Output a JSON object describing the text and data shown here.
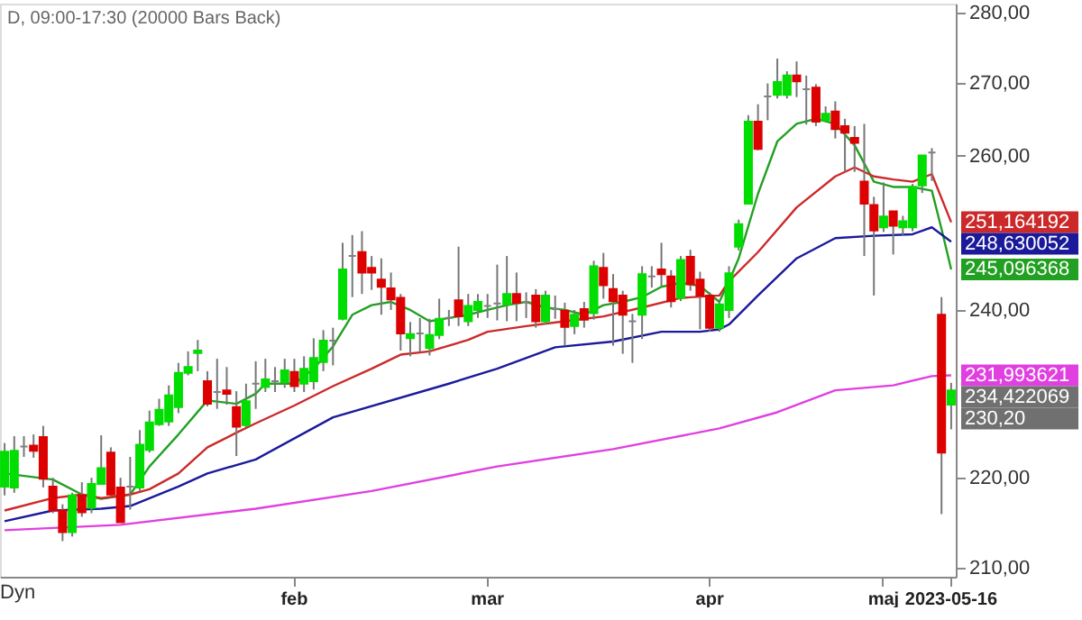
{
  "chart_data": {
    "type": "candlestick",
    "title": "D, 09:00-17:30 (20000 Bars Back)",
    "categories": [
      null,
      null,
      null,
      null,
      null,
      null,
      null,
      null,
      null,
      null,
      null,
      null,
      null,
      null,
      null,
      null,
      null,
      null,
      null,
      null,
      null,
      null,
      null,
      null,
      null,
      null,
      null,
      null,
      null,
      null,
      "feb",
      null,
      null,
      null,
      null,
      null,
      null,
      null,
      null,
      null,
      null,
      null,
      null,
      null,
      null,
      null,
      null,
      null,
      null,
      null,
      "mar",
      null,
      null,
      null,
      null,
      null,
      null,
      null,
      null,
      null,
      null,
      null,
      null,
      null,
      null,
      null,
      null,
      null,
      null,
      null,
      null,
      null,
      null,
      "apr",
      null,
      null,
      null,
      null,
      null,
      null,
      null,
      null,
      null,
      null,
      null,
      null,
      null,
      null,
      null,
      null,
      null,
      "maj",
      null,
      null,
      null,
      null,
      null,
      null,
      "2023-05-16"
    ],
    "ohlc": [
      [
        219.0,
        224.0,
        218.0,
        223.0
      ],
      [
        218.9,
        224.8,
        218.3,
        223.1
      ],
      [
        223.6,
        224.8,
        222.4,
        223.6
      ],
      [
        223.7,
        225.0,
        222.3,
        223.1
      ],
      [
        224.7,
        226.0,
        218.9,
        219.9
      ],
      [
        219.0,
        220.0,
        216.0,
        216.3
      ],
      [
        216.3,
        217.0,
        212.9,
        213.9
      ],
      [
        213.9,
        218.3,
        213.4,
        218.0
      ],
      [
        218.0,
        219.5,
        215.6,
        216.1
      ],
      [
        216.6,
        220.0,
        216.0,
        219.3
      ],
      [
        219.3,
        224.9,
        219.3,
        221.1
      ],
      [
        222.9,
        223.5,
        218.0,
        218.1
      ],
      [
        218.9,
        220.0,
        215.0,
        215.0
      ],
      [
        219.0,
        222.4,
        216.4,
        219.0
      ],
      [
        218.9,
        225.5,
        218.5,
        223.8
      ],
      [
        223.2,
        227.8,
        222.9,
        226.4
      ],
      [
        226.2,
        229.2,
        226.0,
        227.9
      ],
      [
        226.5,
        230.8,
        226.0,
        229.6
      ],
      [
        228.2,
        233.5,
        227.5,
        232.3
      ],
      [
        232.3,
        234.9,
        232.0,
        233.0
      ],
      [
        234.7,
        236.3,
        232.5,
        235.0
      ],
      [
        231.3,
        232.5,
        228.3,
        228.6
      ],
      [
        230.0,
        234.0,
        228.0,
        230.0
      ],
      [
        230.2,
        233.0,
        228.5,
        229.8
      ],
      [
        228.2,
        230.1,
        222.5,
        225.9
      ],
      [
        226.1,
        231.0,
        225.8,
        228.9
      ],
      [
        231.0,
        233.7,
        228.0,
        231.0
      ],
      [
        230.6,
        234.0,
        230.0,
        231.5
      ],
      [
        231.3,
        233.0,
        230.0,
        231.3
      ],
      [
        231.2,
        234.0,
        230.5,
        232.6
      ],
      [
        232.4,
        234.0,
        230.0,
        230.7
      ],
      [
        231.0,
        234.3,
        230.0,
        232.8
      ],
      [
        231.3,
        236.5,
        230.3,
        234.1
      ],
      [
        233.6,
        237.5,
        232.5,
        236.2
      ],
      [
        236.2,
        237.8,
        233.2,
        236.2
      ],
      [
        238.9,
        248.5,
        238.7,
        245.1
      ],
      [
        246.8,
        249.5,
        241.6,
        246.8
      ],
      [
        247.3,
        250.0,
        242.0,
        244.7
      ],
      [
        245.3,
        246.8,
        242.5,
        244.7
      ],
      [
        243.8,
        246.5,
        239.4,
        242.9
      ],
      [
        242.7,
        244.7,
        240.0,
        241.3
      ],
      [
        241.5,
        242.0,
        235.0,
        237.1
      ],
      [
        236.5,
        238.5,
        234.3,
        237.0
      ],
      [
        237.1,
        239.0,
        234.8,
        237.1
      ],
      [
        235.3,
        238.9,
        234.4,
        236.9
      ],
      [
        236.9,
        241.4,
        236.4,
        238.9
      ],
      [
        239.0,
        240.0,
        238.0,
        239.0
      ],
      [
        241.2,
        248.0,
        238.0,
        239.2
      ],
      [
        238.6,
        242.0,
        238.0,
        240.5
      ],
      [
        240.0,
        242.0,
        239.0,
        241.0
      ],
      [
        240.5,
        242.0,
        239.0,
        240.5
      ],
      [
        240.8,
        245.7,
        238.7,
        240.8
      ],
      [
        240.7,
        246.8,
        238.6,
        242.0
      ],
      [
        242.0,
        244.7,
        238.6,
        240.9
      ],
      [
        241.0,
        242.2,
        239.0,
        241.0
      ],
      [
        241.8,
        242.6,
        237.8,
        238.6
      ],
      [
        238.6,
        242.4,
        238.2,
        241.8
      ],
      [
        240.1,
        241.8,
        238.9,
        240.1
      ],
      [
        239.9,
        240.9,
        235.6,
        237.9
      ],
      [
        238.0,
        240.0,
        237.0,
        239.4
      ],
      [
        240.1,
        241.0,
        237.8,
        238.8
      ],
      [
        239.6,
        246.2,
        238.8,
        245.5
      ],
      [
        245.3,
        247.2,
        241.4,
        243.1
      ],
      [
        242.6,
        244.5,
        235.6,
        241.1
      ],
      [
        241.8,
        242.4,
        234.6,
        239.4
      ],
      [
        238.6,
        239.5,
        233.5,
        238.6
      ],
      [
        239.4,
        245.5,
        236.4,
        244.5
      ],
      [
        244.2,
        245.5,
        242.8,
        244.2
      ],
      [
        245.1,
        248.5,
        243.0,
        244.5
      ],
      [
        244.2,
        245.0,
        240.3,
        241.1
      ],
      [
        241.5,
        246.8,
        241.1,
        246.3
      ],
      [
        246.7,
        247.6,
        242.4,
        243.2
      ],
      [
        243.8,
        244.8,
        237.6,
        241.8
      ],
      [
        241.8,
        242.2,
        237.3,
        237.8
      ],
      [
        237.8,
        241.2,
        237.3,
        240.7
      ],
      [
        240.0,
        245.5,
        239.0,
        244.6
      ],
      [
        248.0,
        251.5,
        247.5,
        250.9
      ],
      [
        253.6,
        265.5,
        253.6,
        264.6
      ],
      [
        264.6,
        267.0,
        260.7,
        260.9
      ],
      [
        268.1,
        269.9,
        264.8,
        268.1
      ],
      [
        268.3,
        273.4,
        267.8,
        270.1
      ],
      [
        268.3,
        271.6,
        267.8,
        271.0
      ],
      [
        271.0,
        273.0,
        268.0,
        270.2
      ],
      [
        269.1,
        271.0,
        264.2,
        269.1
      ],
      [
        269.3,
        269.8,
        264.0,
        264.6
      ],
      [
        264.8,
        266.7,
        264.6,
        265.7
      ],
      [
        266.0,
        267.4,
        262.3,
        263.6
      ],
      [
        264.0,
        265.0,
        257.8,
        263.1
      ],
      [
        262.4,
        264.0,
        257.8,
        261.7
      ],
      [
        256.5,
        264.3,
        246.8,
        253.6
      ],
      [
        253.4,
        254.5,
        241.8,
        250.1
      ],
      [
        250.5,
        256.4,
        249.9,
        251.9
      ],
      [
        252.6,
        252.6,
        247.0,
        250.7
      ],
      [
        250.5,
        252.0,
        249.5,
        251.3
      ],
      [
        250.5,
        256.2,
        250.0,
        255.8
      ],
      [
        256.0,
        260.0,
        255.0,
        260.0
      ],
      [
        260.4,
        261.0,
        256.6,
        260.4
      ],
      [
        239.4,
        241.6,
        215.9,
        222.9
      ],
      [
        228.5,
        231.1,
        225.6,
        230.2
      ]
    ],
    "colors": [
      "#00dd00",
      "#00dd00",
      "#808080",
      "#dd0000",
      "#dd0000",
      "#dd0000",
      "#dd0000",
      "#00dd00",
      "#dd0000",
      "#00dd00",
      "#00dd00",
      "#dd0000",
      "#dd0000",
      "#808080",
      "#00dd00",
      "#00dd00",
      "#00dd00",
      "#00dd00",
      "#00dd00",
      "#00dd00",
      "#00dd00",
      "#dd0000",
      "#808080",
      "#dd0000",
      "#dd0000",
      "#00dd00",
      "#808080",
      "#00dd00",
      "#808080",
      "#00dd00",
      "#dd0000",
      "#00dd00",
      "#00dd00",
      "#00dd00",
      "#808080",
      "#00dd00",
      "#808080",
      "#dd0000",
      "#dd0000",
      "#dd0000",
      "#dd0000",
      "#dd0000",
      "#00dd00",
      "#808080",
      "#00dd00",
      "#00dd00",
      "#808080",
      "#dd0000",
      "#00dd00",
      "#00dd00",
      "#808080",
      "#808080",
      "#00dd00",
      "#dd0000",
      "#808080",
      "#dd0000",
      "#00dd00",
      "#808080",
      "#dd0000",
      "#00dd00",
      "#dd0000",
      "#00dd00",
      "#dd0000",
      "#dd0000",
      "#dd0000",
      "#808080",
      "#00dd00",
      "#808080",
      "#dd0000",
      "#dd0000",
      "#00dd00",
      "#dd0000",
      "#dd0000",
      "#dd0000",
      "#00dd00",
      "#00dd00",
      "#00dd00",
      "#00dd00",
      "#dd0000",
      "#808080",
      "#00dd00",
      "#00dd00",
      "#dd0000",
      "#808080",
      "#dd0000",
      "#00dd00",
      "#dd0000",
      "#dd0000",
      "#dd0000",
      "#dd0000",
      "#dd0000",
      "#00dd00",
      "#dd0000",
      "#00dd00",
      "#00dd00",
      "#00dd00",
      "#808080",
      "#dd0000",
      "#00dd00"
    ],
    "series": [
      {
        "type": "line",
        "color": "#22a022",
        "values": [
          220.5,
          null,
          null,
          null,
          null,
          219.8,
          null,
          null,
          218.1,
          null,
          217.6,
          null,
          null,
          218.1,
          null,
          221.3,
          null,
          null,
          225.0,
          null,
          null,
          229.0,
          null,
          null,
          228.6,
          null,
          229.8,
          231.0,
          null,
          null,
          231.0,
          null,
          232.8,
          null,
          235.5,
          null,
          239.4,
          null,
          240.6,
          null,
          241.0,
          null,
          240.0,
          null,
          238.6,
          null,
          239.0,
          null,
          239.4,
          null,
          240.0,
          null,
          240.6,
          null,
          241.0,
          null,
          240.3,
          null,
          240.0,
          null,
          239.4,
          null,
          240.6,
          null,
          241.0,
          null,
          241.6,
          null,
          242.9,
          null,
          243.4,
          null,
          243.0,
          null,
          241.0,
          243.6,
          246.5,
          null,
          254.9,
          null,
          261.9,
          null,
          264.3,
          null,
          265.0,
          null,
          264.3,
          null,
          261.4,
          null,
          256.5,
          null,
          255.8,
          null,
          255.8,
          null,
          255.3,
          250.3,
          245.096368
        ],
        "value_labels": [
          null,
          null,
          null,
          null,
          null,
          null,
          null,
          null,
          null,
          null,
          null,
          null,
          null,
          null,
          null,
          null,
          null,
          null,
          null,
          null,
          null,
          null,
          null,
          null,
          null,
          null,
          null,
          null,
          null,
          null,
          null,
          null,
          null,
          null,
          null,
          null,
          null,
          null,
          null,
          null,
          null,
          null,
          null,
          null,
          null,
          null,
          null,
          null,
          null,
          null,
          null,
          null,
          null,
          null,
          null,
          null,
          null,
          null,
          null,
          null,
          null,
          null,
          null,
          null,
          null,
          null,
          null,
          null,
          null,
          null,
          null,
          null,
          null,
          null,
          null,
          null,
          null,
          null,
          null,
          null,
          null,
          null,
          null,
          null,
          null,
          null,
          null,
          null,
          null,
          null,
          null,
          null,
          null,
          null,
          null,
          null,
          null,
          null,
          "245,096368"
        ]
      },
      {
        "type": "line",
        "color": "#cc2a2a",
        "values": [
          216.3,
          null,
          null,
          null,
          null,
          217.7,
          null,
          null,
          218.1,
          null,
          217.7,
          null,
          null,
          218.1,
          null,
          218.7,
          null,
          null,
          220.5,
          null,
          null,
          223.5,
          null,
          null,
          225.2,
          null,
          226.3,
          null,
          null,
          null,
          228.4,
          null,
          null,
          null,
          230.7,
          null,
          null,
          null,
          232.8,
          null,
          null,
          234.5,
          null,
          null,
          234.9,
          null,
          null,
          null,
          236.3,
          null,
          237.3,
          null,
          null,
          null,
          238.0,
          null,
          null,
          null,
          238.6,
          null,
          null,
          null,
          239.2,
          null,
          null,
          null,
          240.3,
          null,
          null,
          null,
          241.5,
          null,
          null,
          null,
          241.8,
          243.6,
          null,
          null,
          247.3,
          null,
          null,
          null,
          253.1,
          null,
          null,
          null,
          257.2,
          null,
          258.4,
          null,
          257.2,
          null,
          256.8,
          null,
          256.5,
          null,
          257.5,
          null,
          251.164192
        ],
        "value_labels": [
          null,
          null,
          null,
          null,
          null,
          null,
          null,
          null,
          null,
          null,
          null,
          null,
          null,
          null,
          null,
          null,
          null,
          null,
          null,
          null,
          null,
          null,
          null,
          null,
          null,
          null,
          null,
          null,
          null,
          null,
          null,
          null,
          null,
          null,
          null,
          null,
          null,
          null,
          null,
          null,
          null,
          null,
          null,
          null,
          null,
          null,
          null,
          null,
          null,
          null,
          null,
          null,
          null,
          null,
          null,
          null,
          null,
          null,
          null,
          null,
          null,
          null,
          null,
          null,
          null,
          null,
          null,
          null,
          null,
          null,
          null,
          null,
          null,
          null,
          null,
          null,
          null,
          null,
          null,
          null,
          null,
          null,
          null,
          null,
          null,
          null,
          null,
          null,
          null,
          null,
          null,
          null,
          null,
          null,
          null,
          null,
          null,
          null,
          "251,164192"
        ]
      },
      {
        "type": "line",
        "color": "#1a1a9a",
        "values": [
          215.1,
          null,
          null,
          null,
          null,
          216.3,
          null,
          null,
          null,
          null,
          216.5,
          null,
          null,
          216.8,
          null,
          null,
          null,
          null,
          219.0,
          null,
          null,
          220.5,
          null,
          null,
          null,
          null,
          222.1,
          null,
          null,
          null,
          null,
          null,
          null,
          null,
          227.0,
          null,
          null,
          null,
          null,
          null,
          null,
          null,
          null,
          null,
          null,
          null,
          231.0,
          null,
          null,
          null,
          null,
          232.8,
          null,
          null,
          null,
          null,
          null,
          235.4,
          null,
          null,
          null,
          null,
          null,
          236.1,
          null,
          null,
          null,
          null,
          237.3,
          null,
          null,
          null,
          237.3,
          null,
          237.6,
          238.2,
          null,
          null,
          241.8,
          null,
          null,
          null,
          246.5,
          null,
          null,
          null,
          249.1,
          null,
          null,
          null,
          249.4,
          null,
          null,
          null,
          249.6,
          null,
          250.5,
          null,
          248.630052
        ],
        "value_labels": [
          null,
          null,
          null,
          null,
          null,
          null,
          null,
          null,
          null,
          null,
          null,
          null,
          null,
          null,
          null,
          null,
          null,
          null,
          null,
          null,
          null,
          null,
          null,
          null,
          null,
          null,
          null,
          null,
          null,
          null,
          null,
          null,
          null,
          null,
          null,
          null,
          null,
          null,
          null,
          null,
          null,
          null,
          null,
          null,
          null,
          null,
          null,
          null,
          null,
          null,
          null,
          null,
          null,
          null,
          null,
          null,
          null,
          null,
          null,
          null,
          null,
          null,
          null,
          null,
          null,
          null,
          null,
          null,
          null,
          null,
          null,
          null,
          null,
          null,
          null,
          null,
          null,
          null,
          null,
          null,
          null,
          null,
          null,
          null,
          null,
          null,
          null,
          null,
          null,
          null,
          null,
          null,
          null,
          null,
          null,
          null,
          null,
          null,
          "248,630052"
        ]
      },
      {
        "type": "line",
        "color": "#e040e0",
        "values": [
          214.1,
          null,
          null,
          null,
          null,
          null,
          null,
          null,
          null,
          null,
          null,
          null,
          214.7,
          null,
          null,
          null,
          null,
          null,
          null,
          null,
          null,
          null,
          null,
          null,
          null,
          null,
          216.5,
          null,
          null,
          null,
          null,
          null,
          null,
          null,
          null,
          null,
          null,
          null,
          218.5,
          null,
          null,
          null,
          null,
          null,
          null,
          null,
          null,
          null,
          null,
          null,
          null,
          221.3,
          null,
          null,
          null,
          null,
          null,
          null,
          null,
          null,
          null,
          null,
          null,
          223.3,
          null,
          null,
          null,
          null,
          null,
          null,
          null,
          null,
          null,
          null,
          225.7,
          null,
          null,
          null,
          null,
          null,
          227.6,
          null,
          null,
          null,
          null,
          null,
          230.2,
          null,
          null,
          null,
          null,
          null,
          230.8,
          null,
          null,
          null,
          231.9,
          null,
          231.993621
        ],
        "value_labels": [
          null,
          null,
          null,
          null,
          null,
          null,
          null,
          null,
          null,
          null,
          null,
          null,
          null,
          null,
          null,
          null,
          null,
          null,
          null,
          null,
          null,
          null,
          null,
          null,
          null,
          null,
          null,
          null,
          null,
          null,
          null,
          null,
          null,
          null,
          null,
          null,
          null,
          null,
          null,
          null,
          null,
          null,
          null,
          null,
          null,
          null,
          null,
          null,
          null,
          null,
          null,
          null,
          null,
          null,
          null,
          null,
          null,
          null,
          null,
          null,
          null,
          null,
          null,
          null,
          null,
          null,
          null,
          null,
          null,
          null,
          null,
          null,
          null,
          null,
          null,
          null,
          null,
          null,
          null,
          null,
          null,
          null,
          null,
          null,
          null,
          null,
          null,
          null,
          null,
          null,
          null,
          null,
          null,
          null,
          null,
          null,
          null,
          null,
          "231,993621"
        ]
      }
    ],
    "annotations": [
      "234,422069",
      "230,20",
      "Dyn"
    ],
    "log": true,
    "ylim": [
      209.0,
      281.3
    ],
    "yticks": [
      {
        "value": 210,
        "label": "210,00"
      },
      {
        "value": 220,
        "label": "220,00"
      },
      {
        "value": 240,
        "label": "240,00"
      },
      {
        "value": 260,
        "label": "260,00"
      },
      {
        "value": 270,
        "label": "270,00"
      },
      {
        "value": 280,
        "label": "280,00"
      }
    ]
  }
}
